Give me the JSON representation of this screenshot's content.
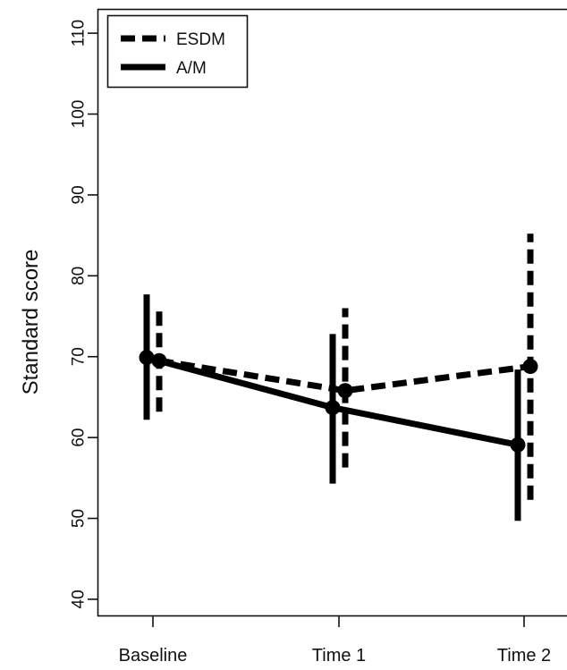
{
  "chart_data": {
    "type": "line",
    "categories": [
      "Baseline",
      "Time 1",
      "Time 2"
    ],
    "ylabel": "Standard score",
    "xlabel": "",
    "ylim": [
      38,
      113
    ],
    "yticks": [
      40,
      50,
      60,
      70,
      80,
      90,
      100,
      110
    ],
    "legend_position": "top-left",
    "grid": false,
    "series": [
      {
        "name": "ESDM",
        "line_style": "dashed",
        "color": "#000000",
        "values": [
          69.5,
          65.8,
          68.8
        ],
        "error_low": [
          63.2,
          56.3,
          52.3
        ],
        "error_high": [
          75.8,
          76.0,
          85.2
        ]
      },
      {
        "name": "A/M",
        "line_style": "solid",
        "color": "#000000",
        "values": [
          69.9,
          63.7,
          59.1
        ],
        "error_low": [
          62.2,
          54.3,
          49.7
        ],
        "error_high": [
          77.7,
          72.8,
          68.4
        ]
      }
    ]
  }
}
